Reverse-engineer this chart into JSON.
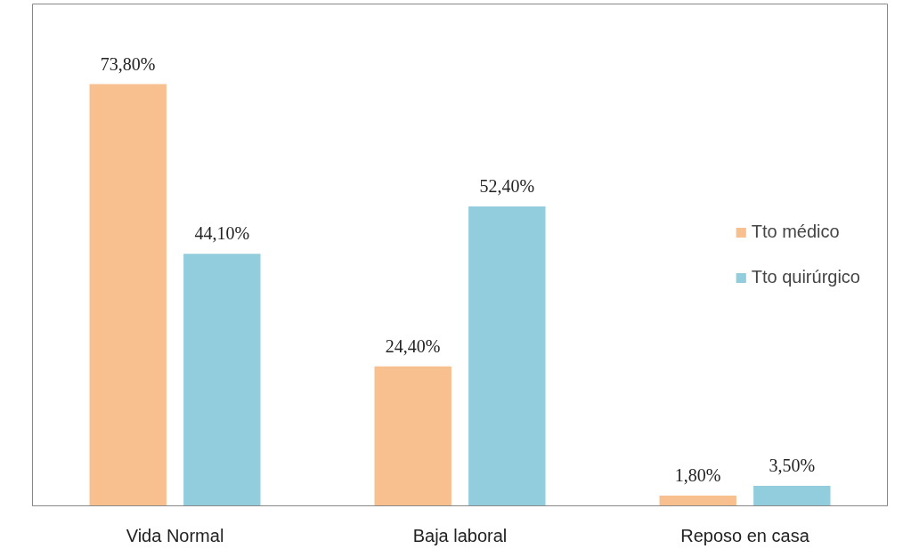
{
  "chart_data": {
    "type": "bar",
    "categories": [
      "Vida Normal",
      "Baja laboral",
      "Reposo en casa"
    ],
    "series": [
      {
        "name": "Tto médico",
        "color": "#f9c08f",
        "values": [
          73.8,
          24.4,
          1.8
        ],
        "value_labels": [
          "73,80%",
          "24,40%",
          "1,80%"
        ]
      },
      {
        "name": "Tto quirúrgico",
        "color": "#92cddd",
        "values": [
          44.1,
          52.4,
          3.5
        ],
        "value_labels": [
          "44,10%",
          "52,40%",
          "3,50%"
        ]
      }
    ],
    "legend": "right",
    "grid": false
  }
}
